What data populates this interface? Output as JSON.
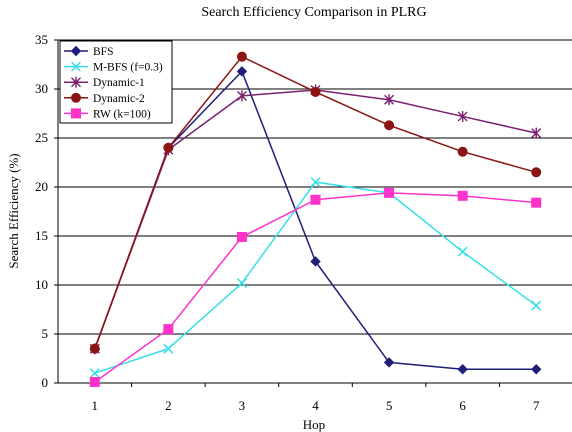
{
  "chart_data": {
    "type": "line",
    "title": "Search Efficiency Comparison in PLRG",
    "xlabel": "Hop",
    "ylabel": "Search Efficiency (%)",
    "x": [
      1,
      2,
      3,
      4,
      5,
      6,
      7
    ],
    "ylim": [
      0,
      35
    ],
    "yticks": [
      0,
      5,
      10,
      15,
      20,
      25,
      30,
      35
    ],
    "grid": "horizontal",
    "legend_position": "top-left",
    "series": [
      {
        "name": "BFS",
        "color": "#1f1f7a",
        "marker": "diamond",
        "values": [
          3.5,
          24.0,
          31.8,
          12.4,
          2.1,
          1.4,
          1.4
        ]
      },
      {
        "name": "M-BFS (f=0.3)",
        "color": "#33e0e8",
        "marker": "x",
        "values": [
          1.0,
          3.5,
          10.2,
          20.5,
          19.4,
          13.4,
          7.9
        ]
      },
      {
        "name": "Dynamic-1",
        "color": "#7a1f6e",
        "marker": "star",
        "values": [
          3.5,
          23.8,
          29.3,
          29.9,
          28.9,
          27.2,
          25.5
        ]
      },
      {
        "name": "Dynamic-2",
        "color": "#8b1414",
        "marker": "circle",
        "values": [
          3.5,
          24.0,
          33.3,
          29.7,
          26.3,
          23.6,
          21.5
        ]
      },
      {
        "name": "RW (k=100)",
        "color": "#ff33cc",
        "marker": "square",
        "values": [
          0.1,
          5.5,
          14.9,
          18.7,
          19.4,
          19.1,
          18.4
        ]
      }
    ]
  }
}
